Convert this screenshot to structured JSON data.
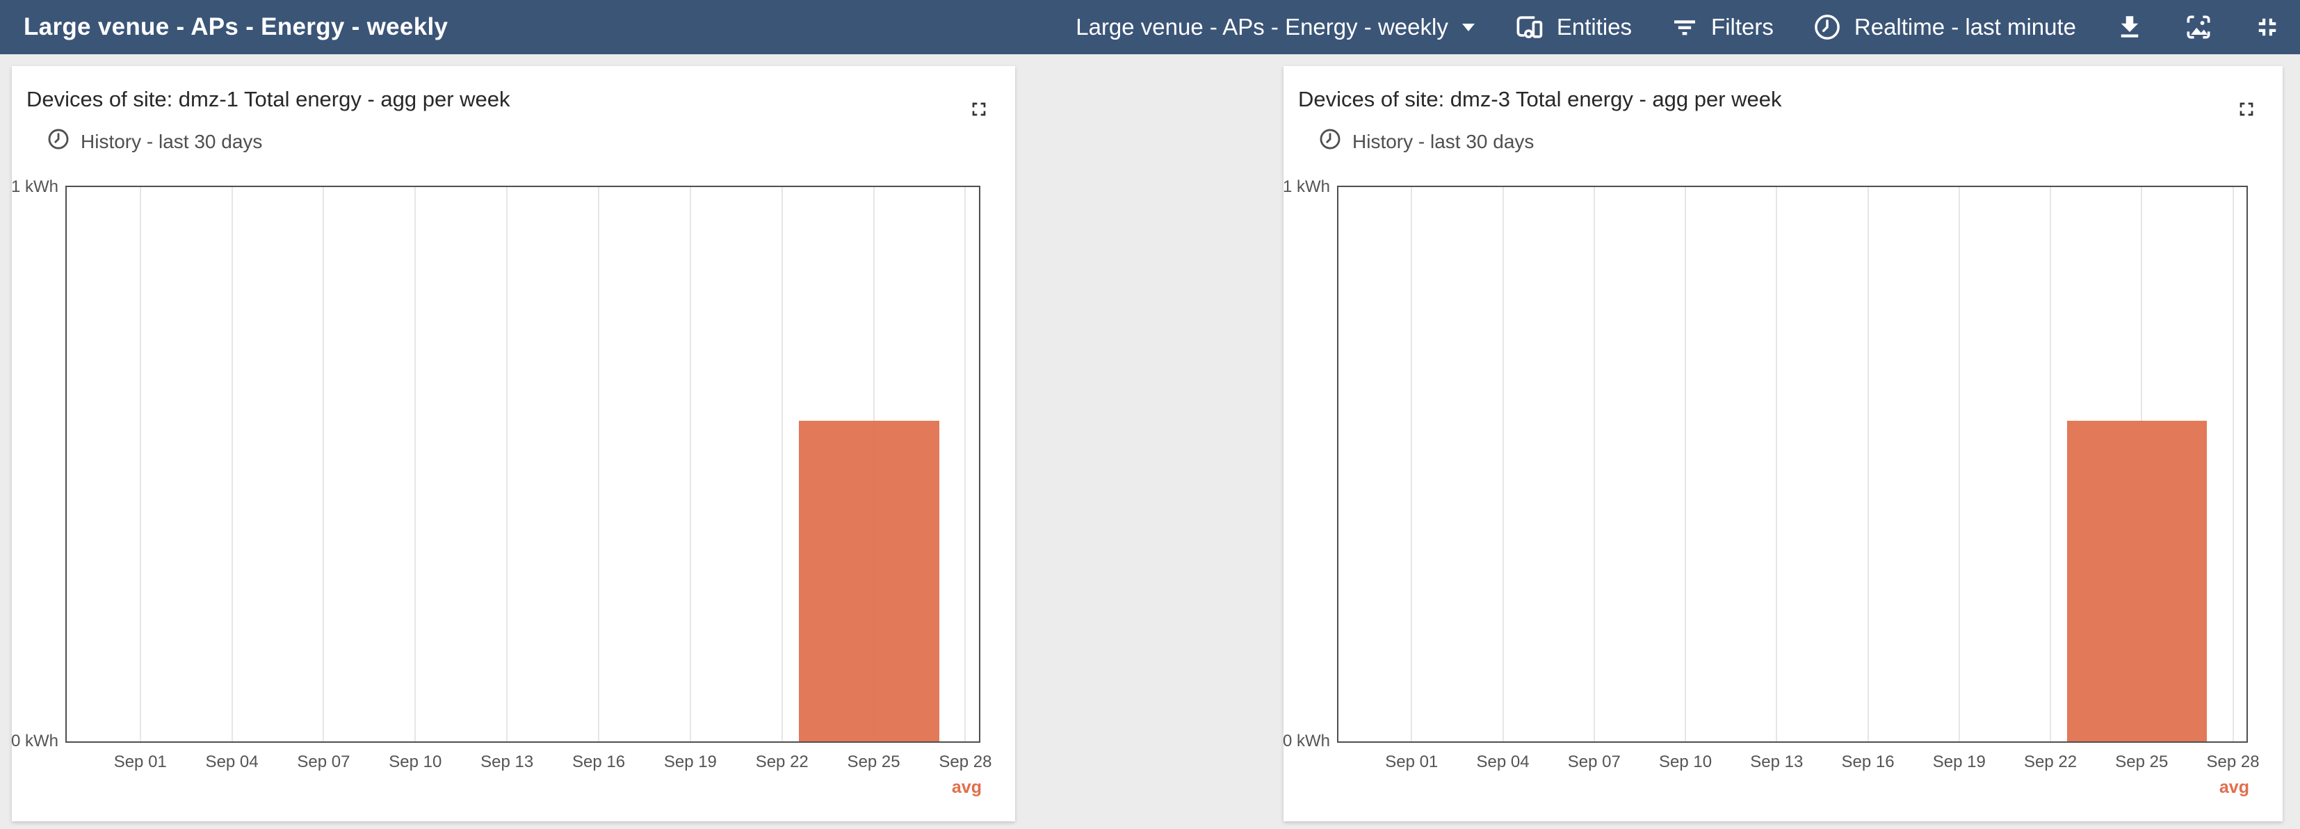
{
  "toolbar": {
    "title": "Large venue - APs - Energy - weekly",
    "dashboard_selector": "Large venue - APs - Energy - weekly",
    "entities_label": "Entities",
    "filters_label": "Filters",
    "timewindow_label": "Realtime - last minute",
    "icons": [
      "devices-icon",
      "filter-list-icon",
      "clock-icon",
      "download-icon",
      "image-icon",
      "exit-fullscreen-icon"
    ]
  },
  "cards": [
    {
      "title": "Devices of site: dmz-1 Total energy - agg per week",
      "timewindow": "History - last 30 days"
    },
    {
      "title": "Devices of site: dmz-3 Total energy - agg per week",
      "timewindow": "History - last 30 days"
    }
  ],
  "chart_data": [
    {
      "type": "bar",
      "title": "Devices of site: dmz-1 Total energy - agg per week",
      "timewindow": "History - last 30 days",
      "y_top_label": "1 kWh",
      "y_bottom_label": "0 kWh",
      "y_unit": "kWh",
      "ylim": [
        0,
        1
      ],
      "xticks": [
        "Sep 01",
        "Sep 04",
        "Sep 07",
        "Sep 10",
        "Sep 13",
        "Sep 16",
        "Sep 19",
        "Sep 22",
        "Sep 25",
        "Sep 28"
      ],
      "series": [
        {
          "name": "avg",
          "color": "#e06f4c",
          "bars": [
            {
              "x_start": "Sep 22",
              "x_end": "Sep 27",
              "value_kwh": 0.58
            }
          ]
        }
      ],
      "legend": {
        "labels": [
          "avg"
        ],
        "position": "bottom-right",
        "color": "#e06f4c"
      },
      "layout": {
        "grid": true,
        "tick_offset_frac": 0.0806,
        "tick_spacing_frac": 0.1005,
        "bar_left_frac": 0.8024,
        "bar_right_frac": 0.9567,
        "bar_height_frac": 0.579
      }
    },
    {
      "type": "bar",
      "title": "Devices of site: dmz-3 Total energy - agg per week",
      "timewindow": "History - last 30 days",
      "y_top_label": "1 kWh",
      "y_bottom_label": "0 kWh",
      "y_unit": "kWh",
      "ylim": [
        0,
        1
      ],
      "xticks": [
        "Sep 01",
        "Sep 04",
        "Sep 07",
        "Sep 10",
        "Sep 13",
        "Sep 16",
        "Sep 19",
        "Sep 22",
        "Sep 25",
        "Sep 28"
      ],
      "series": [
        {
          "name": "avg",
          "color": "#e06f4c",
          "bars": [
            {
              "x_start": "Sep 22",
              "x_end": "Sep 27",
              "value_kwh": 0.58
            }
          ]
        }
      ],
      "legend": {
        "labels": [
          "avg"
        ],
        "position": "bottom-right",
        "color": "#e06f4c"
      },
      "layout": {
        "grid": true,
        "tick_offset_frac": 0.0806,
        "tick_spacing_frac": 0.1005,
        "bar_left_frac": 0.8024,
        "bar_right_frac": 0.9567,
        "bar_height_frac": 0.579
      }
    }
  ],
  "colors": {
    "header_bg": "#3b5577",
    "page_bg": "#ececec",
    "card_bg": "#ffffff",
    "bar": "#e06f4c",
    "axis_border": "#4f4f4f",
    "gridline": "#e6e6e6",
    "tick_text": "#545454",
    "legend_text": "#e06f4c"
  }
}
